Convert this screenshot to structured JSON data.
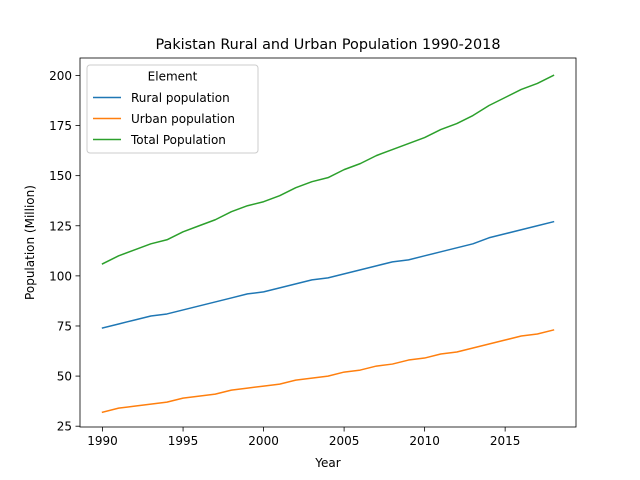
{
  "chart_data": {
    "type": "line",
    "title": "Pakistan Rural and Urban Population 1990-2018",
    "xlabel": "Year",
    "ylabel": "Population (Million)",
    "xlim": [
      1988.6,
      2019.4
    ],
    "ylim": [
      24.6,
      208.7
    ],
    "xticks": [
      1990,
      1995,
      2000,
      2005,
      2010,
      2015
    ],
    "yticks": [
      25,
      50,
      75,
      100,
      125,
      150,
      175,
      200
    ],
    "grid": false,
    "legend": {
      "title": "Element",
      "position": "top-left"
    },
    "x": [
      1990,
      1991,
      1992,
      1993,
      1994,
      1995,
      1996,
      1997,
      1998,
      1999,
      2000,
      2001,
      2002,
      2003,
      2004,
      2005,
      2006,
      2007,
      2008,
      2009,
      2010,
      2011,
      2012,
      2013,
      2014,
      2015,
      2016,
      2017,
      2018
    ],
    "series": [
      {
        "name": "Rural population",
        "color": "#1f77b4",
        "values": [
          74,
          76,
          78,
          80,
          81,
          83,
          85,
          87,
          89,
          91,
          92,
          94,
          96,
          98,
          99,
          101,
          103,
          105,
          107,
          108,
          110,
          112,
          114,
          116,
          119,
          121,
          123,
          125,
          127
        ]
      },
      {
        "name": "Urban population",
        "color": "#ff7f0e",
        "values": [
          32,
          34,
          35,
          36,
          37,
          39,
          40,
          41,
          43,
          44,
          45,
          46,
          48,
          49,
          50,
          52,
          53,
          55,
          56,
          58,
          59,
          61,
          62,
          64,
          66,
          68,
          70,
          71,
          73
        ]
      },
      {
        "name": "Total Population",
        "color": "#2ca02c",
        "values": [
          106,
          110,
          113,
          116,
          118,
          122,
          125,
          128,
          132,
          135,
          137,
          140,
          144,
          147,
          149,
          153,
          156,
          160,
          163,
          166,
          169,
          173,
          176,
          180,
          185,
          189,
          193,
          196,
          200
        ]
      }
    ]
  }
}
